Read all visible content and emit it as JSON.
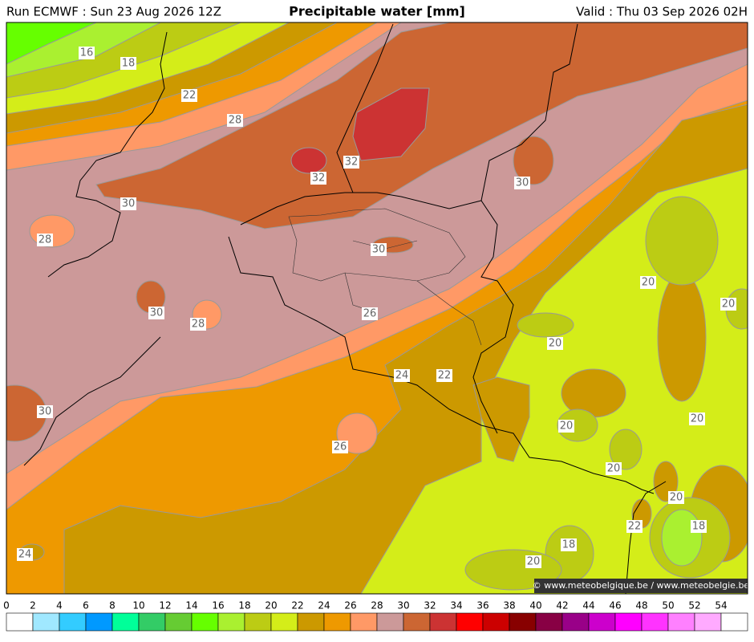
{
  "header": {
    "run": "Run ECMWF : Sun 23 Aug 2026 12Z",
    "title": "Precipitable water [mm]",
    "valid": "Valid : Thu 03 Sep 2026 02H"
  },
  "contour_labels": [
    "16",
    "18",
    "22",
    "28",
    "32",
    "32",
    "30",
    "30",
    "28",
    "30",
    "20",
    "20",
    "30",
    "28",
    "26",
    "20",
    "24",
    "22",
    "30",
    "20",
    "20",
    "26",
    "20",
    "20",
    "22",
    "18",
    "18",
    "20",
    "24"
  ],
  "credit": "© www.meteobelgique.be / www.meteobelgie.be",
  "legend": {
    "ticks": [
      0,
      2,
      4,
      6,
      8,
      10,
      12,
      14,
      16,
      18,
      20,
      22,
      24,
      26,
      28,
      30,
      32,
      34,
      36,
      38,
      40,
      42,
      44,
      46,
      48,
      50,
      52,
      54
    ],
    "colors": [
      "#ffffff",
      "#a0e8ff",
      "#33ccff",
      "#0099ff",
      "#00ff99",
      "#33cc66",
      "#66cc33",
      "#66ff00",
      "#aaf030",
      "#bccc14",
      "#d4ed19",
      "#cc9900",
      "#ee9900",
      "#ff9966",
      "#cc9999",
      "#cc6633",
      "#cc3333",
      "#ff0000",
      "#cc0000",
      "#880000",
      "#880044",
      "#990088",
      "#cc00cc",
      "#ff00ff",
      "#ff33ff",
      "#ff80ff",
      "#ffaaff",
      "#ffffff"
    ]
  }
}
